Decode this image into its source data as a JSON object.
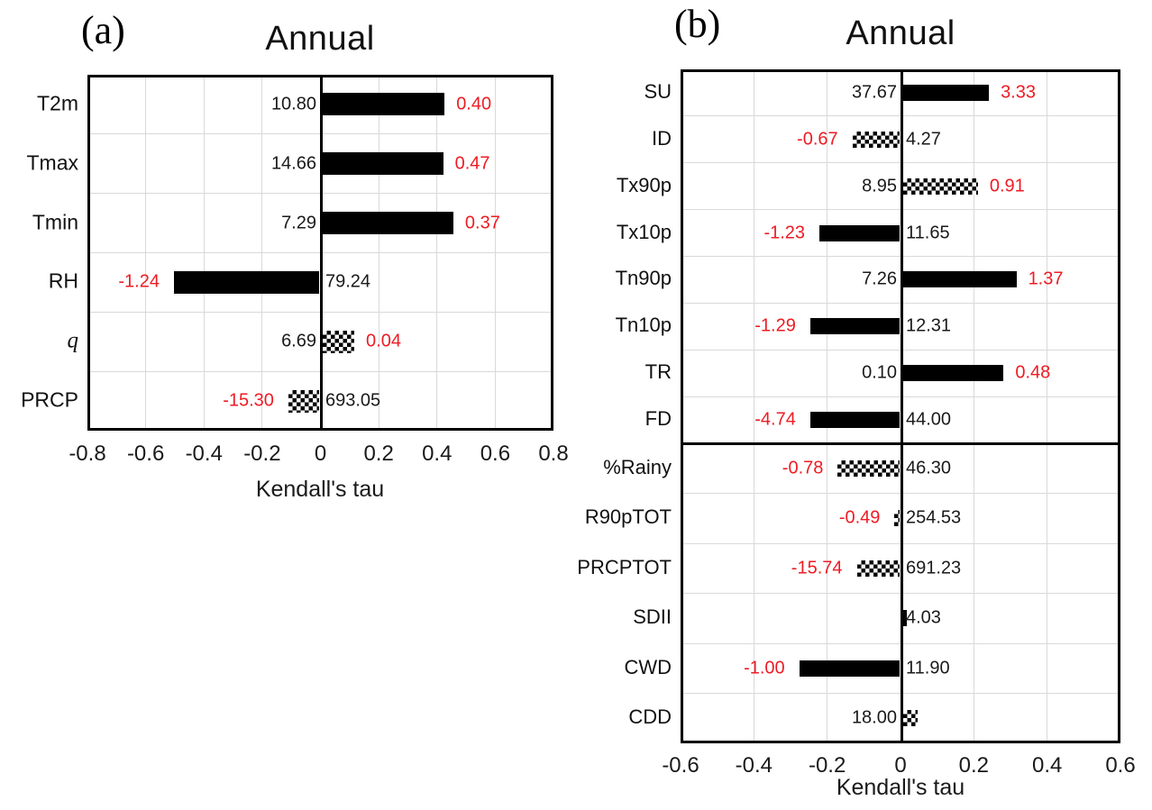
{
  "figure_background": "#ffffff",
  "colors": {
    "bar": "#000000",
    "red_label": "#ed1c24",
    "dark_label": "#1a1a1a",
    "gridline": "#d9d9d9",
    "border": "#000000"
  },
  "chart_data": [
    {
      "type": "bar",
      "orientation": "horizontal",
      "panel_letter": "(a)",
      "title": "Annual",
      "xlabel": "Kendall's tau",
      "xlim": [
        -0.8,
        0.8
      ],
      "xticks": [
        "-0.8",
        "-0.6",
        "-0.4",
        "-0.2",
        "0",
        "0.2",
        "0.4",
        "0.6",
        "0.8"
      ],
      "grid": true,
      "rows": [
        {
          "label": "T2m",
          "tau": 0.42,
          "fill": "solid",
          "mean": "10.80",
          "mean_side": "left",
          "slope": "0.40",
          "italic": false
        },
        {
          "label": "Tmax",
          "tau": 0.415,
          "fill": "solid",
          "mean": "14.66",
          "mean_side": "left",
          "slope": "0.47",
          "italic": false
        },
        {
          "label": "Tmin",
          "tau": 0.45,
          "fill": "solid",
          "mean": "7.29",
          "mean_side": "left",
          "slope": "0.37",
          "italic": false
        },
        {
          "label": "RH",
          "tau": -0.5,
          "fill": "solid",
          "mean": "79.24",
          "mean_side": "right",
          "slope": "-1.24",
          "italic": false
        },
        {
          "label": "q",
          "tau": 0.11,
          "fill": "checkered",
          "mean": "6.69",
          "mean_side": "left",
          "slope": "0.04",
          "italic": true
        },
        {
          "label": "PRCP",
          "tau": -0.107,
          "fill": "checkered",
          "mean": "693.05",
          "mean_side": "right",
          "slope": "-15.30",
          "italic": false
        }
      ]
    },
    {
      "type": "bar",
      "orientation": "horizontal",
      "panel_letter": "(b)",
      "title": "Annual",
      "xlabel": "Kendall's tau",
      "xlim": [
        -0.6,
        0.6
      ],
      "xticks": [
        "-0.6",
        "-0.4",
        "-0.2",
        "0",
        "0.2",
        "0.4",
        "0.6"
      ],
      "grid": true,
      "separator_after_row": 8,
      "rows": [
        {
          "label": "SU",
          "tau": 0.235,
          "fill": "solid",
          "mean": "37.67",
          "mean_side": "left",
          "slope": "3.33",
          "italic": false
        },
        {
          "label": "ID",
          "tau": -0.13,
          "fill": "checkered",
          "mean": "4.27",
          "mean_side": "right",
          "slope": "-0.67",
          "italic": false
        },
        {
          "label": "Tx90p",
          "tau": 0.205,
          "fill": "checkered",
          "mean": "8.95",
          "mean_side": "left",
          "slope": "0.91",
          "italic": false
        },
        {
          "label": "Tx10p",
          "tau": -0.22,
          "fill": "solid",
          "mean": "11.65",
          "mean_side": "right",
          "slope": "-1.23",
          "italic": false
        },
        {
          "label": "Tn90p",
          "tau": 0.31,
          "fill": "solid",
          "mean": "7.26",
          "mean_side": "left",
          "slope": "1.37",
          "italic": false
        },
        {
          "label": "Tn10p",
          "tau": -0.245,
          "fill": "solid",
          "mean": "12.31",
          "mean_side": "right",
          "slope": "-1.29",
          "italic": false
        },
        {
          "label": "TR",
          "tau": 0.275,
          "fill": "solid",
          "mean": "0.10",
          "mean_side": "left",
          "slope": "0.48",
          "italic": false
        },
        {
          "label": "FD",
          "tau": -0.245,
          "fill": "solid",
          "mean": "44.00",
          "mean_side": "right",
          "slope": "-4.74",
          "italic": false
        },
        {
          "label": "%Rainy",
          "tau": -0.17,
          "fill": "checkered",
          "mean": "46.30",
          "mean_side": "right",
          "slope": "-0.78",
          "italic": false
        },
        {
          "label": "R90pTOT",
          "tau": -0.015,
          "fill": "checkered",
          "mean": "254.53",
          "mean_side": "right",
          "slope": "-0.49",
          "italic": false
        },
        {
          "label": "PRCPTOT",
          "tau": -0.118,
          "fill": "checkered",
          "mean": "691.23",
          "mean_side": "right",
          "slope": "-15.74",
          "italic": false
        },
        {
          "label": "SDII",
          "tau": 0.012,
          "fill": "solid",
          "mean": "4.03",
          "mean_side": "right",
          "slope": null,
          "italic": false
        },
        {
          "label": "CWD",
          "tau": -0.275,
          "fill": "solid",
          "mean": "11.90",
          "mean_side": "right",
          "slope": "-1.00",
          "italic": false
        },
        {
          "label": "CDD",
          "tau": 0.04,
          "fill": "checkered",
          "mean": "18.00",
          "mean_side": "left",
          "slope": null,
          "italic": false
        }
      ]
    }
  ]
}
